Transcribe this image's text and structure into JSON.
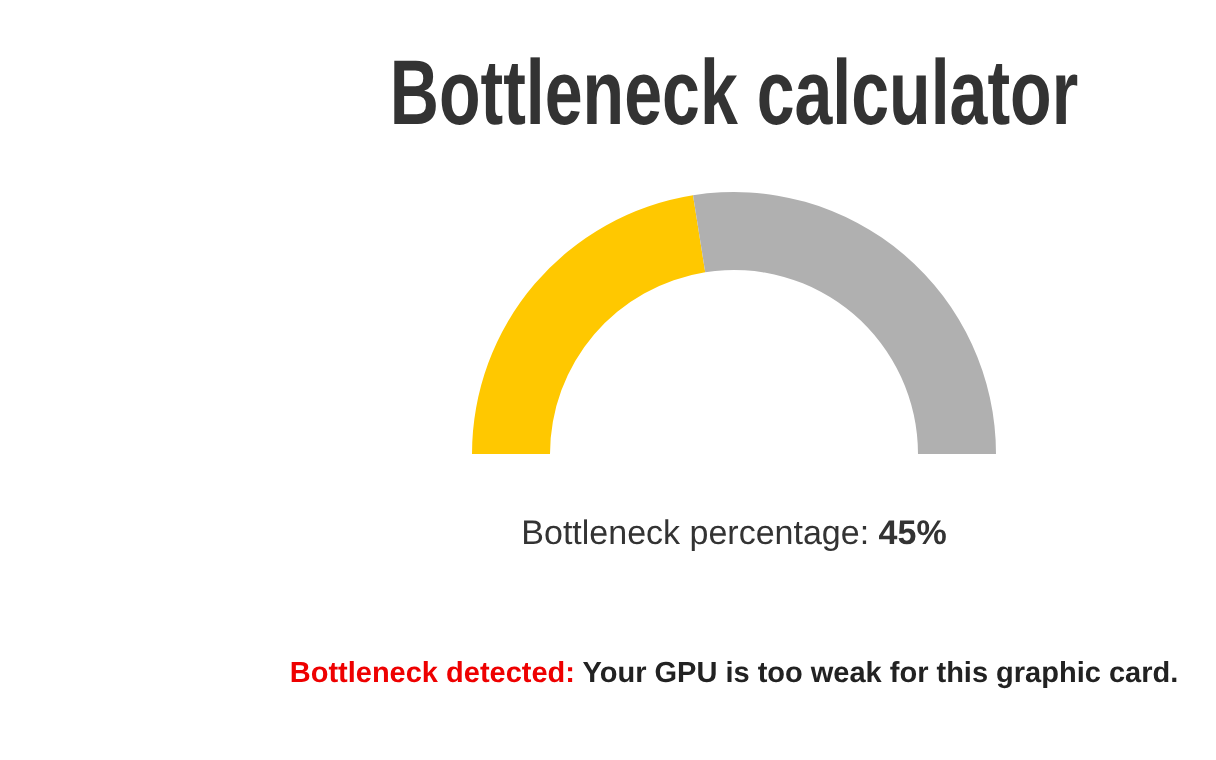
{
  "chart_data": {
    "type": "donut",
    "title": "Bottleneck calculator",
    "categories": [
      null,
      null
    ],
    "values": [
      45,
      55
    ],
    "colors": [
      "#ffc800",
      "#b0b0b0"
    ],
    "annotations": [
      "Bottleneck percentage:",
      "45%",
      "Bottleneck detected:",
      "Your GPU is too weak for this graphic card."
    ]
  }
}
